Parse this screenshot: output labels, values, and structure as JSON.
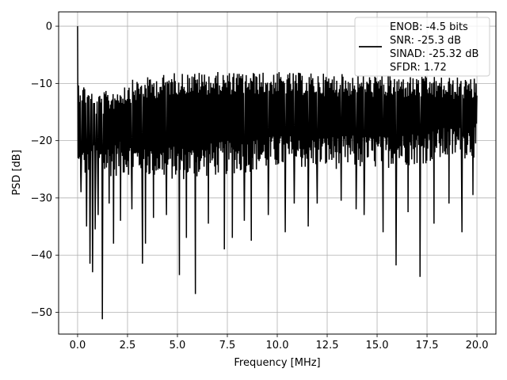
{
  "chart_data": {
    "type": "line",
    "xlabel": "Frequency [MHz]",
    "ylabel": "PSD [dB]",
    "xlim": [
      -0.95,
      20.95
    ],
    "ylim": [
      -53.8,
      2.5
    ],
    "xticks": [
      0.0,
      2.5,
      5.0,
      7.5,
      10.0,
      12.5,
      15.0,
      17.5,
      20.0
    ],
    "xtick_labels": [
      "0.0",
      "2.5",
      "5.0",
      "7.5",
      "10.0",
      "12.5",
      "15.0",
      "17.5",
      "20.0"
    ],
    "yticks": [
      0,
      -10,
      -20,
      -30,
      -40,
      -50
    ],
    "ytick_labels": [
      "0",
      "−10",
      "−20",
      "−30",
      "−40",
      "−50"
    ],
    "grid": true,
    "legend_position": "top-right",
    "legend_lines": [
      "ENOB: -4.5 bits",
      "SNR: -25.3 dB",
      "SINAD: -25.32 dB",
      "SFDR: 1.72"
    ],
    "series": [
      {
        "color": "#000000",
        "x_range": [
          0,
          20
        ],
        "y_peak": 0,
        "upper_envelope": [
          [
            0.0,
            -9.0
          ],
          [
            1.0,
            -12.0
          ],
          [
            2.5,
            -9.5
          ],
          [
            5.0,
            -8.0
          ],
          [
            10.0,
            -8.0
          ],
          [
            15.0,
            -8.5
          ],
          [
            20.0,
            -9.0
          ]
        ],
        "lower_envelope": [
          [
            0.0,
            -27.0
          ],
          [
            2.5,
            -26.0
          ],
          [
            5.0,
            -27.0
          ],
          [
            10.0,
            -25.0
          ],
          [
            15.0,
            -25.0
          ],
          [
            20.0,
            -23.0
          ]
        ],
        "notches": [
          [
            0.17,
            -29.0
          ],
          [
            0.45,
            -35.0
          ],
          [
            0.62,
            -41.5
          ],
          [
            0.75,
            -43.0
          ],
          [
            0.88,
            -35.5
          ],
          [
            1.03,
            -33.0
          ],
          [
            1.24,
            -51.2
          ],
          [
            1.58,
            -31.0
          ],
          [
            1.8,
            -38.0
          ],
          [
            2.15,
            -34.0
          ],
          [
            2.72,
            -32.0
          ],
          [
            3.25,
            -41.5
          ],
          [
            3.4,
            -38.0
          ],
          [
            3.8,
            -33.5
          ],
          [
            4.45,
            -33.0
          ],
          [
            5.1,
            -43.5
          ],
          [
            5.45,
            -37.0
          ],
          [
            5.9,
            -46.8
          ],
          [
            6.55,
            -34.5
          ],
          [
            7.35,
            -39.0
          ],
          [
            7.75,
            -37.0
          ],
          [
            8.35,
            -34.0
          ],
          [
            8.7,
            -37.5
          ],
          [
            9.55,
            -33.0
          ],
          [
            10.4,
            -36.0
          ],
          [
            10.85,
            -31.0
          ],
          [
            11.55,
            -35.0
          ],
          [
            12.0,
            -31.0
          ],
          [
            13.2,
            -30.5
          ],
          [
            13.95,
            -32.0
          ],
          [
            14.35,
            -33.0
          ],
          [
            15.3,
            -36.0
          ],
          [
            15.95,
            -41.8
          ],
          [
            16.55,
            -32.5
          ],
          [
            17.15,
            -43.8
          ],
          [
            17.85,
            -34.5
          ],
          [
            18.6,
            -31.0
          ],
          [
            19.25,
            -36.0
          ],
          [
            19.8,
            -29.5
          ]
        ]
      }
    ]
  }
}
